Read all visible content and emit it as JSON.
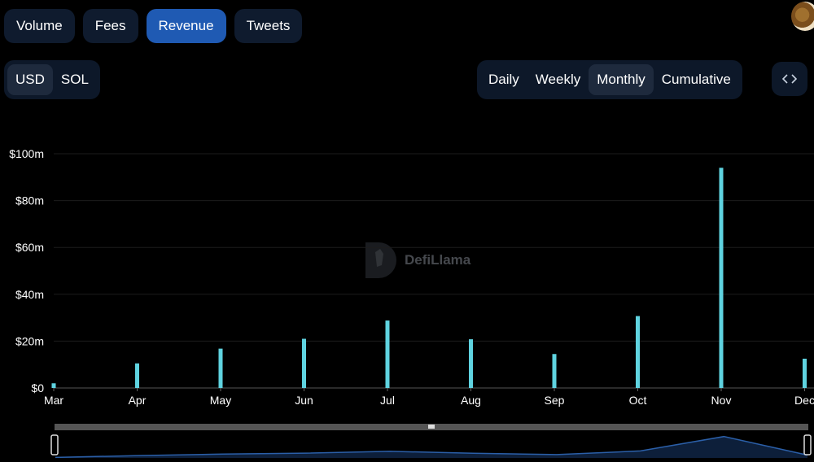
{
  "metric_tabs": [
    {
      "label": "Volume",
      "active": false
    },
    {
      "label": "Fees",
      "active": false
    },
    {
      "label": "Revenue",
      "active": true
    },
    {
      "label": "Tweets",
      "active": false
    }
  ],
  "currency_toggle": [
    {
      "label": "USD",
      "active": true
    },
    {
      "label": "SOL",
      "active": false
    }
  ],
  "period_toggle": [
    {
      "label": "Daily",
      "active": false
    },
    {
      "label": "Weekly",
      "active": false
    },
    {
      "label": "Monthly",
      "active": true
    },
    {
      "label": "Cumulative",
      "active": false
    }
  ],
  "icons": {
    "embed": "code-icon",
    "avatar": "user-avatar",
    "watermark": "defillama-logo-icon"
  },
  "watermark": {
    "text": "DefiLlama"
  },
  "colors": {
    "bar": "#5fd3e0",
    "active_tab": "#1f5ab3",
    "tab_bg": "#0f1b2e",
    "brush_line": "#2b5fa8"
  },
  "chart_data": {
    "type": "bar",
    "categories": [
      "Mar",
      "Apr",
      "May",
      "Jun",
      "Jul",
      "Aug",
      "Sep",
      "Oct",
      "Nov",
      "Dec"
    ],
    "values": [
      2,
      10.5,
      16.8,
      21,
      28.8,
      20.8,
      14.5,
      30.7,
      94,
      12.5
    ],
    "y_ticks": [
      "$0",
      "$20m",
      "$40m",
      "$60m",
      "$80m",
      "$100m"
    ],
    "y_tick_values": [
      0,
      20,
      40,
      60,
      80,
      100
    ],
    "ylim": [
      0,
      100
    ],
    "unit": "$m",
    "grid": true,
    "xlabel": "",
    "ylabel": ""
  }
}
